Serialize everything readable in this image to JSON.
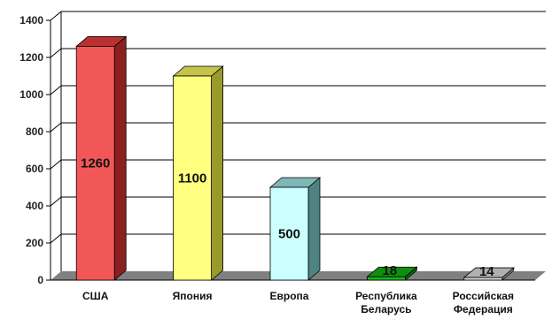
{
  "chart_data": {
    "type": "bar",
    "title": "",
    "xlabel": "",
    "ylabel": "",
    "categories": [
      [
        "США"
      ],
      [
        "Япония"
      ],
      [
        "Европа"
      ],
      [
        "Республика",
        "Беларусь"
      ],
      [
        "Российская",
        "Федерация"
      ]
    ],
    "values": [
      1260,
      1100,
      500,
      18,
      14
    ],
    "data_labels": [
      "1260",
      "1100",
      "500",
      "18",
      "14"
    ],
    "yticks": [
      0,
      200,
      400,
      600,
      800,
      1000,
      1200,
      1400
    ],
    "ylim": [
      0,
      1400
    ],
    "grid": true,
    "legend": "none",
    "colors": [
      {
        "front": "#f25757",
        "top": "#b83030",
        "side": "#8c1f1f"
      },
      {
        "front": "#ffff80",
        "top": "#c4c44a",
        "side": "#9a9a2c"
      },
      {
        "front": "#ccffff",
        "top": "#7fb6b6",
        "side": "#4f8282"
      },
      {
        "front": "#1fb01f",
        "top": "#0f8f0f",
        "side": "#0a6b0a"
      },
      {
        "front": "#d9d9d9",
        "top": "#b0b0b0",
        "side": "#8a8a8a"
      }
    ],
    "floor_color": "#808080",
    "grid_color": "#000000"
  }
}
